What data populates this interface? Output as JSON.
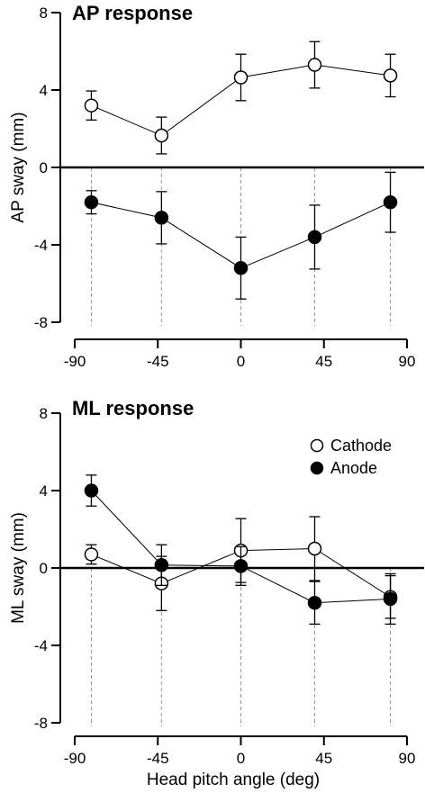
{
  "chart_data": [
    {
      "type": "line",
      "title": "AP response",
      "xlabel": "",
      "ylabel": "AP sway  (mm)",
      "xlim": [
        -90,
        90
      ],
      "ylim": [
        -8,
        8
      ],
      "x_ticks": [
        "-90",
        "-45",
        "0",
        "45",
        "90"
      ],
      "y_ticks": [
        "8",
        "4",
        "0",
        "-4",
        "-8"
      ],
      "x_tick_values": [
        -90,
        -45,
        0,
        45,
        90
      ],
      "y_tick_values": [
        8,
        4,
        0,
        -4,
        -8
      ],
      "x": [
        -81,
        -43,
        0,
        40,
        81
      ],
      "series": [
        {
          "name": "Cathode",
          "marker": "open-circle",
          "values": [
            3.2,
            1.65,
            4.65,
            5.3,
            4.75
          ],
          "errors": [
            0.75,
            0.95,
            1.2,
            1.2,
            1.1
          ]
        },
        {
          "name": "Anode",
          "marker": "filled-circle",
          "values": [
            -1.8,
            -2.6,
            -5.2,
            -3.6,
            -1.8
          ],
          "errors": [
            0.6,
            1.35,
            1.6,
            1.65,
            1.55
          ]
        }
      ],
      "zero_line": true,
      "legend": null
    },
    {
      "type": "line",
      "title": "ML response",
      "xlabel": "Head pitch angle  (deg)",
      "ylabel": "ML sway  (mm)",
      "xlim": [
        -90,
        90
      ],
      "ylim": [
        -8,
        8
      ],
      "x_ticks": [
        "-90",
        "-45",
        "0",
        "45",
        "90"
      ],
      "y_ticks": [
        "8",
        "4",
        "0",
        "-4",
        "-8"
      ],
      "x_tick_values": [
        -90,
        -45,
        0,
        45,
        90
      ],
      "y_tick_values": [
        8,
        4,
        0,
        -4,
        -8
      ],
      "x": [
        -81,
        -43,
        0,
        40,
        81
      ],
      "series": [
        {
          "name": "Cathode",
          "marker": "open-circle",
          "values": [
            0.7,
            -0.8,
            0.9,
            1.0,
            -1.5
          ],
          "errors": [
            0.5,
            1.4,
            1.65,
            1.65,
            1.1
          ]
        },
        {
          "name": "Anode",
          "marker": "filled-circle",
          "values": [
            4.0,
            0.15,
            0.1,
            -1.8,
            -1.6
          ],
          "errors": [
            0.8,
            1.05,
            1.0,
            1.1,
            1.3
          ]
        }
      ],
      "zero_line": true,
      "legend": {
        "placement": "top-right",
        "entries": [
          "Cathode",
          "Anode"
        ]
      }
    }
  ]
}
